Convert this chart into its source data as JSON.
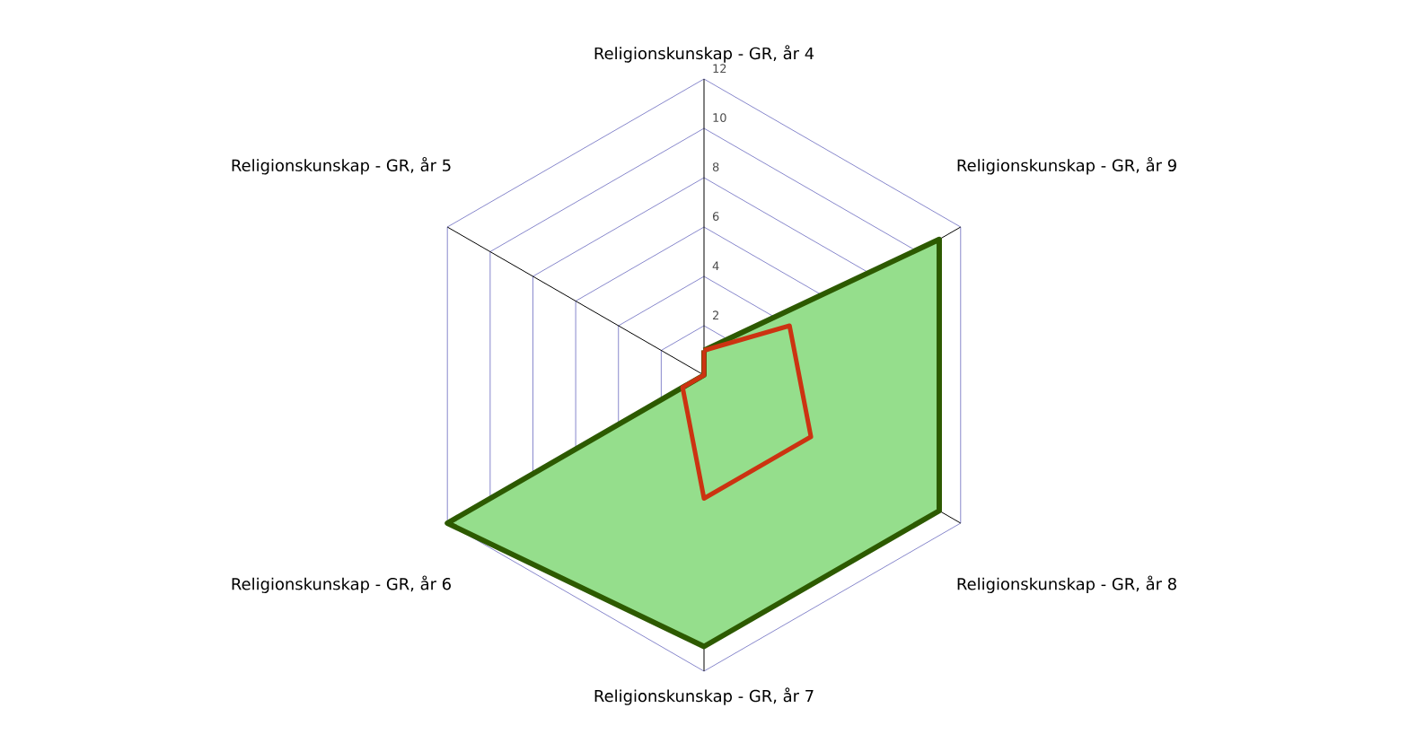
{
  "chart_data": {
    "type": "radar",
    "categories": [
      "Religionskunskap - GR, år 4",
      "Religionskunskap - GR, år 9",
      "Religionskunskap - GR, år 8",
      "Religionskunskap - GR, år 7",
      "Religionskunskap - GR, år 6",
      "Religionskunskap - GR, år 5"
    ],
    "series": [
      {
        "type": "area",
        "color": "#2d5a00",
        "values": [
          1,
          11,
          11,
          11,
          12,
          0
        ]
      },
      {
        "color": "#cc3311",
        "values": [
          1,
          4,
          5,
          5,
          1,
          0
        ]
      }
    ],
    "ylim": [
      0,
      12
    ],
    "yticks": [
      2,
      4,
      6,
      8,
      10,
      12
    ],
    "grid": true
  }
}
